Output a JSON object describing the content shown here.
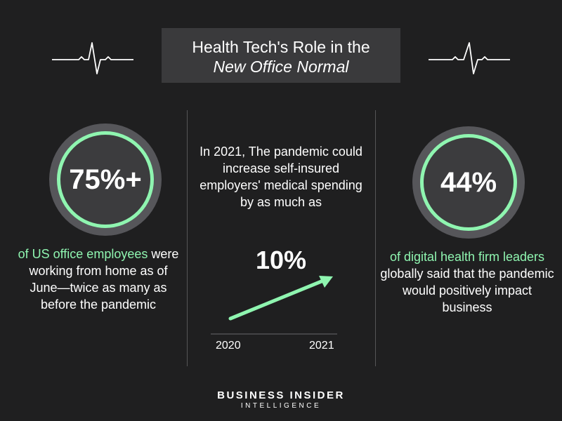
{
  "title": {
    "line1": "Health Tech's Role in the",
    "line2": "New Office Normal"
  },
  "colors": {
    "background": "#1f1f20",
    "accent": "#8ff5b0",
    "title_box": "#3a3a3c",
    "ring_outer": "#56565a"
  },
  "left_stat": {
    "value": "75%+",
    "highlight": "of US office employees",
    "rest": "were working from home as of June—twice as many as before the pandemic"
  },
  "center_stat": {
    "text": "In 2021, The pandemic could increase self-insured employers' medical spending by as much as",
    "value": "10%",
    "x_start_label": "2020",
    "x_end_label": "2021"
  },
  "right_stat": {
    "value": "44%",
    "highlight": "of digital health firm leaders",
    "rest": "globally said that the pandemic would positively impact business"
  },
  "brand": {
    "name": "BUSINESS INSIDER",
    "sub": "INTELLIGENCE"
  },
  "icons": {
    "ekg": "heartbeat-line-icon",
    "arrow": "trend-arrow-icon"
  }
}
